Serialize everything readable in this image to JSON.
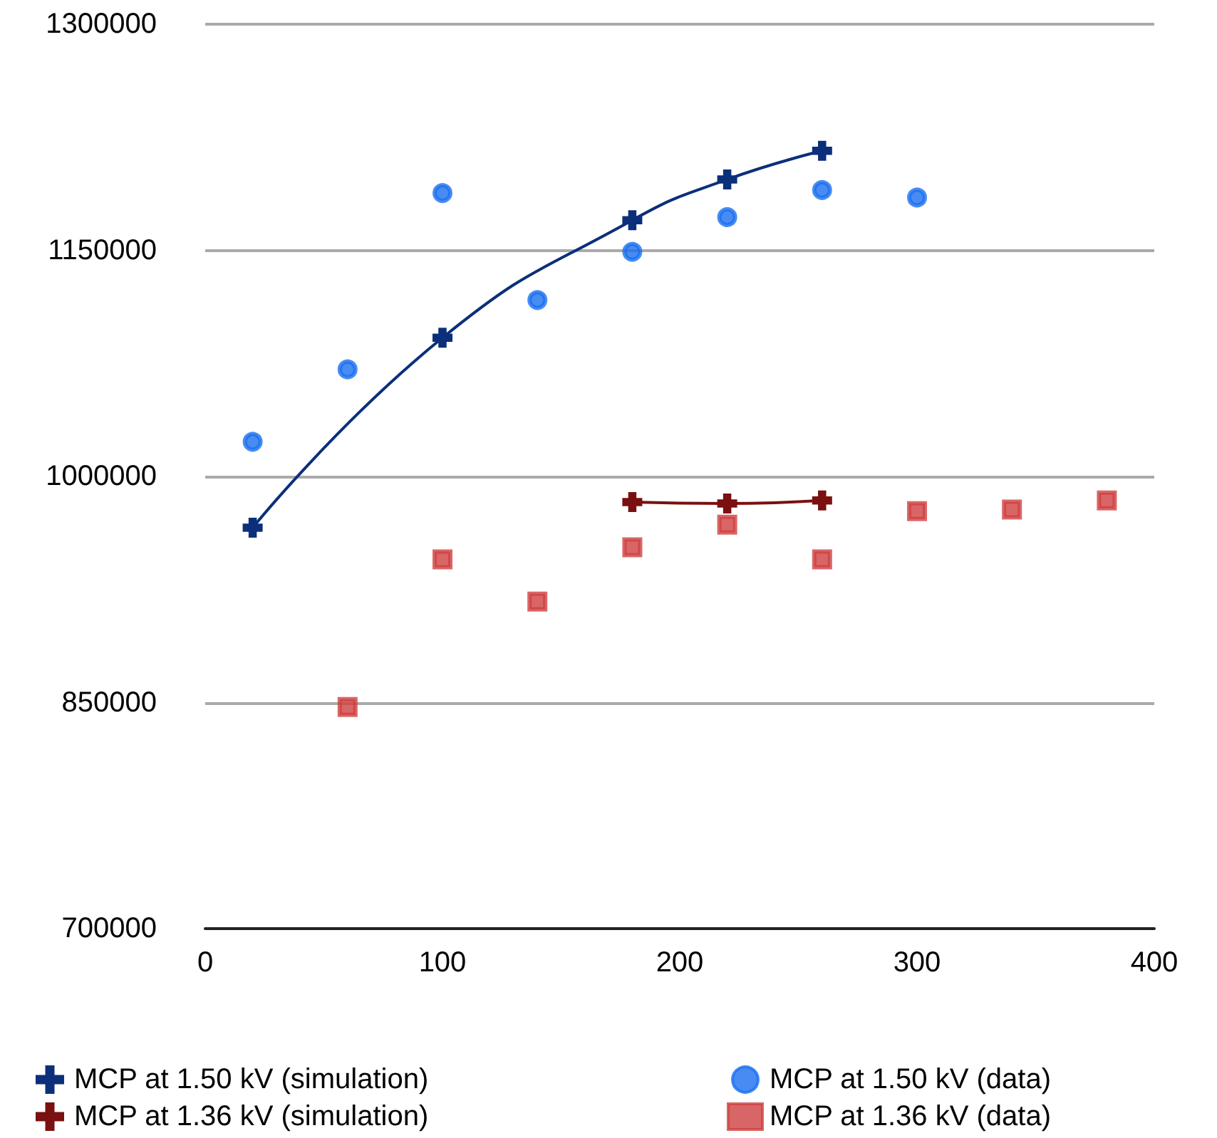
{
  "chart_data": {
    "type": "scatter",
    "xlim": [
      0,
      400
    ],
    "xticks": [
      0,
      100,
      200,
      300,
      400
    ],
    "ylim": [
      700000,
      1300000
    ],
    "yticks": [
      700000,
      850000,
      1000000,
      1150000,
      1300000
    ],
    "grid": "y",
    "legend": "bottom",
    "series": [
      {
        "name": "MCP at 1.50 kV (simulation)",
        "type": "line",
        "marker": "cross",
        "color": "#0b2f7a",
        "x": [
          20,
          100,
          180,
          220,
          260
        ],
        "values": [
          966000,
          1092000,
          1170000,
          1197000,
          1216000
        ]
      },
      {
        "name": "MCP at 1.36 kV (simulation)",
        "type": "line",
        "marker": "cross",
        "color": "#7a1010",
        "x": [
          180,
          220,
          260
        ],
        "values": [
          983000,
          982000,
          984000
        ]
      },
      {
        "name": "MCP at 1.50 kV (data)",
        "type": "scatter",
        "marker": "circle",
        "color": "#1a6ff0",
        "x": [
          20,
          60,
          100,
          140,
          180,
          220,
          260,
          300
        ],
        "values": [
          1023000,
          1071000,
          1188000,
          1117000,
          1149000,
          1172000,
          1190000,
          1185000
        ]
      },
      {
        "name": "MCP at 1.36 kV (data)",
        "type": "scatter",
        "marker": "square",
        "color": "#d04040",
        "x": [
          60,
          100,
          140,
          180,
          220,
          260,
          300,
          340,
          380
        ],
        "values": [
          847000,
          945000,
          917000,
          953000,
          968000,
          945000,
          977000,
          978000,
          984000
        ]
      }
    ]
  }
}
